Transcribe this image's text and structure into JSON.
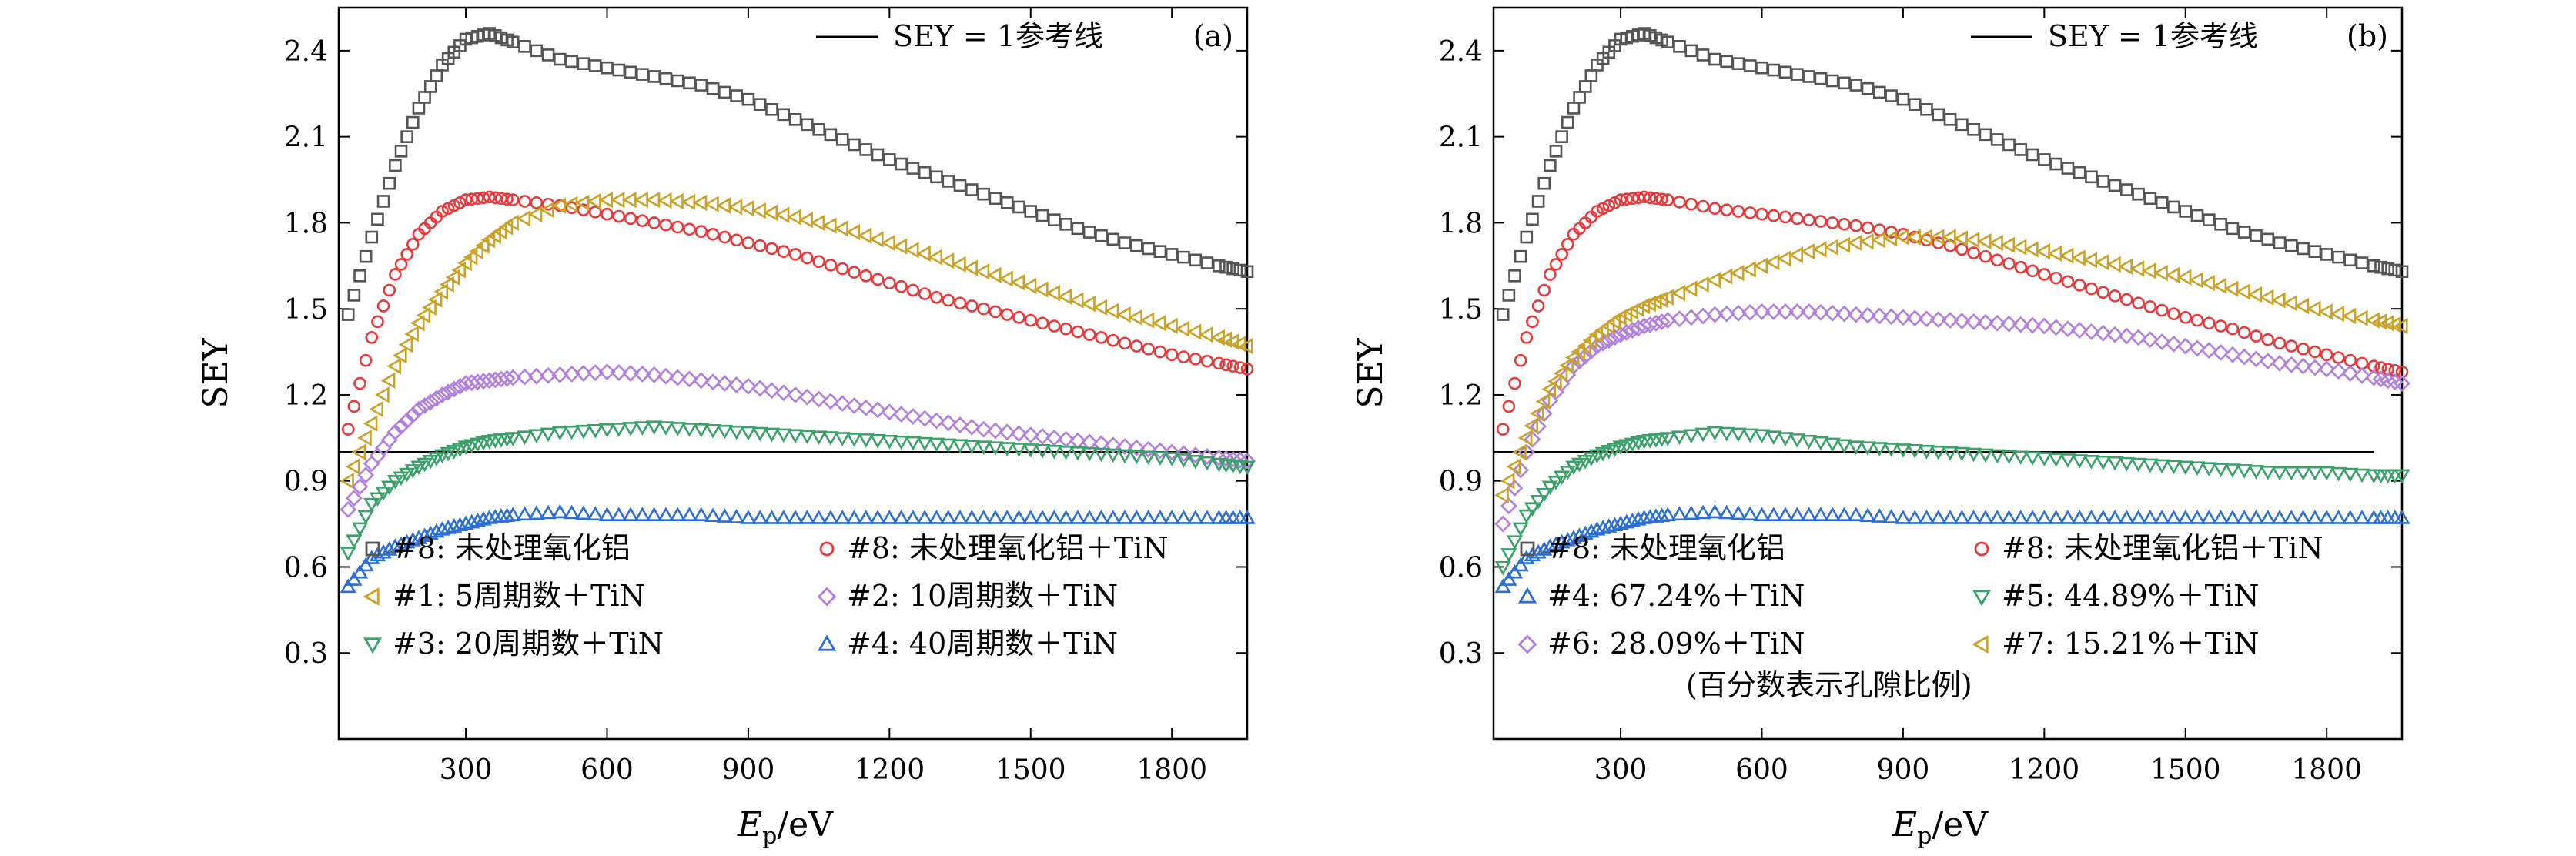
{
  "chart_data": [
    {
      "type": "scatter",
      "panel_label": "(a)",
      "xlabel": "E",
      "xlabel_sub": "p",
      "xlabel_unit": "/eV",
      "ylabel": "SEY",
      "xlim": [
        30,
        1960
      ],
      "ylim": [
        0.0,
        2.55
      ],
      "xticks": [
        300,
        600,
        900,
        1200,
        1500,
        1800
      ],
      "yticks": [
        0.3,
        0.6,
        0.9,
        1.2,
        1.5,
        1.8,
        2.1,
        2.4
      ],
      "reference_line": {
        "y": 1.0,
        "label": "SEY = 1参考线",
        "x_range": [
          30,
          1960
        ]
      },
      "legend_columns": 2,
      "series": [
        {
          "name": "#8: 未处理氧化铝",
          "marker": "square",
          "color": "#555555",
          "x": [
            50,
            100,
            150,
            200,
            250,
            300,
            350,
            400,
            500,
            600,
            700,
            800,
            900,
            1000,
            1100,
            1200,
            1300,
            1400,
            1500,
            1600,
            1700,
            1800,
            1900,
            1960
          ],
          "y": [
            1.48,
            1.75,
            2.0,
            2.2,
            2.35,
            2.44,
            2.46,
            2.43,
            2.37,
            2.34,
            2.31,
            2.28,
            2.23,
            2.16,
            2.09,
            2.02,
            1.96,
            1.9,
            1.84,
            1.78,
            1.73,
            1.69,
            1.65,
            1.63
          ]
        },
        {
          "name": "#8: 未处理氧化铝＋TiN",
          "marker": "circle",
          "color": "#e8393b",
          "x": [
            50,
            100,
            150,
            200,
            250,
            300,
            350,
            400,
            500,
            600,
            700,
            800,
            900,
            1000,
            1100,
            1200,
            1300,
            1400,
            1500,
            1600,
            1700,
            1800,
            1900,
            1960
          ],
          "y": [
            1.08,
            1.4,
            1.62,
            1.76,
            1.84,
            1.88,
            1.89,
            1.88,
            1.86,
            1.83,
            1.8,
            1.77,
            1.73,
            1.69,
            1.64,
            1.59,
            1.54,
            1.5,
            1.46,
            1.42,
            1.38,
            1.34,
            1.31,
            1.29
          ]
        },
        {
          "name": "#1: 5周期数＋TiN",
          "marker": "triangle-left",
          "color": "#c9a227",
          "x": [
            50,
            100,
            150,
            200,
            250,
            300,
            350,
            400,
            500,
            600,
            700,
            800,
            900,
            1000,
            1100,
            1200,
            1300,
            1400,
            1500,
            1600,
            1700,
            1800,
            1900,
            1960
          ],
          "y": [
            0.9,
            1.1,
            1.3,
            1.45,
            1.56,
            1.66,
            1.74,
            1.8,
            1.86,
            1.88,
            1.88,
            1.87,
            1.85,
            1.82,
            1.78,
            1.73,
            1.68,
            1.63,
            1.58,
            1.53,
            1.48,
            1.44,
            1.4,
            1.37
          ]
        },
        {
          "name": "#2: 10周期数＋TiN",
          "marker": "diamond",
          "color": "#b07fe0",
          "x": [
            50,
            100,
            150,
            200,
            250,
            300,
            350,
            400,
            500,
            600,
            700,
            800,
            900,
            1000,
            1100,
            1200,
            1300,
            1400,
            1500,
            1600,
            1700,
            1800,
            1900,
            1960
          ],
          "y": [
            0.8,
            0.96,
            1.07,
            1.15,
            1.2,
            1.24,
            1.25,
            1.26,
            1.27,
            1.28,
            1.27,
            1.25,
            1.23,
            1.2,
            1.17,
            1.14,
            1.11,
            1.08,
            1.06,
            1.04,
            1.02,
            1.0,
            0.98,
            0.97
          ]
        },
        {
          "name": "#3: 20周期数＋TiN",
          "marker": "triangle-down",
          "color": "#3aa168",
          "x": [
            50,
            100,
            150,
            200,
            250,
            300,
            350,
            400,
            500,
            600,
            700,
            800,
            900,
            1000,
            1100,
            1200,
            1300,
            1400,
            1500,
            1600,
            1700,
            1800,
            1900,
            1960
          ],
          "y": [
            0.65,
            0.82,
            0.9,
            0.95,
            0.99,
            1.02,
            1.04,
            1.05,
            1.07,
            1.08,
            1.09,
            1.08,
            1.07,
            1.06,
            1.05,
            1.04,
            1.03,
            1.02,
            1.01,
            1.0,
            0.99,
            0.98,
            0.96,
            0.95
          ]
        },
        {
          "name": "#4: 40周期数＋TiN",
          "marker": "triangle-up",
          "color": "#2b6fd6",
          "x": [
            50,
            100,
            150,
            200,
            250,
            300,
            350,
            400,
            500,
            600,
            700,
            800,
            900,
            1000,
            1100,
            1200,
            1300,
            1400,
            1500,
            1600,
            1700,
            1800,
            1900,
            1960
          ],
          "y": [
            0.53,
            0.63,
            0.67,
            0.7,
            0.73,
            0.75,
            0.77,
            0.78,
            0.79,
            0.78,
            0.78,
            0.78,
            0.77,
            0.77,
            0.77,
            0.77,
            0.77,
            0.77,
            0.77,
            0.77,
            0.77,
            0.77,
            0.77,
            0.77
          ]
        }
      ]
    },
    {
      "type": "scatter",
      "panel_label": "(b)",
      "xlabel": "E",
      "xlabel_sub": "p",
      "xlabel_unit": "/eV",
      "ylabel": "SEY",
      "xlim": [
        30,
        1960
      ],
      "ylim": [
        0.0,
        2.55
      ],
      "xticks": [
        300,
        600,
        900,
        1200,
        1500,
        1800
      ],
      "yticks": [
        0.3,
        0.6,
        0.9,
        1.2,
        1.5,
        1.8,
        2.1,
        2.4
      ],
      "reference_line": {
        "y": 1.0,
        "label": "SEY = 1参考线",
        "x_range": [
          30,
          1900
        ]
      },
      "legend_columns": 2,
      "annotation": "(百分数表示孔隙比例)",
      "series": [
        {
          "name": "#8: 未处理氧化铝",
          "marker": "square",
          "color": "#555555",
          "x": [
            50,
            100,
            150,
            200,
            250,
            300,
            350,
            400,
            500,
            600,
            700,
            800,
            900,
            1000,
            1100,
            1200,
            1300,
            1400,
            1500,
            1600,
            1700,
            1800,
            1900,
            1960
          ],
          "y": [
            1.48,
            1.75,
            2.0,
            2.2,
            2.35,
            2.44,
            2.46,
            2.43,
            2.37,
            2.34,
            2.31,
            2.28,
            2.23,
            2.16,
            2.09,
            2.02,
            1.96,
            1.9,
            1.84,
            1.78,
            1.73,
            1.69,
            1.65,
            1.63
          ]
        },
        {
          "name": "#8: 未处理氧化铝＋TiN",
          "marker": "circle",
          "color": "#e8393b",
          "x": [
            50,
            100,
            150,
            200,
            250,
            300,
            350,
            400,
            500,
            600,
            700,
            800,
            900,
            1000,
            1100,
            1200,
            1300,
            1400,
            1500,
            1600,
            1700,
            1800,
            1900,
            1960
          ],
          "y": [
            1.08,
            1.4,
            1.62,
            1.76,
            1.84,
            1.88,
            1.89,
            1.88,
            1.85,
            1.83,
            1.81,
            1.79,
            1.76,
            1.72,
            1.67,
            1.62,
            1.57,
            1.52,
            1.47,
            1.43,
            1.38,
            1.34,
            1.3,
            1.28
          ]
        },
        {
          "name": "#4: 67.24%＋TiN",
          "marker": "triangle-up",
          "color": "#2b6fd6",
          "x": [
            50,
            100,
            150,
            200,
            250,
            300,
            350,
            400,
            500,
            600,
            700,
            800,
            900,
            1000,
            1100,
            1200,
            1300,
            1400,
            1500,
            1600,
            1700,
            1800,
            1900,
            1960
          ],
          "y": [
            0.53,
            0.63,
            0.67,
            0.7,
            0.73,
            0.75,
            0.77,
            0.78,
            0.79,
            0.78,
            0.78,
            0.78,
            0.77,
            0.77,
            0.77,
            0.77,
            0.77,
            0.77,
            0.77,
            0.77,
            0.77,
            0.77,
            0.77,
            0.77
          ]
        },
        {
          "name": "#5: 44.89%＋TiN",
          "marker": "triangle-down",
          "color": "#3aa168",
          "x": [
            50,
            100,
            150,
            200,
            250,
            300,
            350,
            400,
            500,
            600,
            700,
            800,
            900,
            1000,
            1100,
            1200,
            1300,
            1400,
            1500,
            1600,
            1700,
            1800,
            1900,
            1960
          ],
          "y": [
            0.6,
            0.78,
            0.88,
            0.95,
            0.99,
            1.02,
            1.04,
            1.05,
            1.07,
            1.06,
            1.04,
            1.02,
            1.01,
            1.0,
            0.99,
            0.98,
            0.97,
            0.96,
            0.95,
            0.94,
            0.93,
            0.93,
            0.92,
            0.92
          ]
        },
        {
          "name": "#6: 28.09%＋TiN",
          "marker": "diamond",
          "color": "#b07fe0",
          "x": [
            50,
            100,
            150,
            200,
            250,
            300,
            350,
            400,
            500,
            600,
            700,
            800,
            900,
            1000,
            1100,
            1200,
            1300,
            1400,
            1500,
            1600,
            1700,
            1800,
            1900,
            1960
          ],
          "y": [
            0.75,
            1.0,
            1.18,
            1.3,
            1.37,
            1.41,
            1.44,
            1.46,
            1.48,
            1.49,
            1.49,
            1.48,
            1.47,
            1.46,
            1.45,
            1.44,
            1.42,
            1.4,
            1.37,
            1.34,
            1.31,
            1.29,
            1.26,
            1.24
          ]
        },
        {
          "name": "#7: 15.21%＋TiN",
          "marker": "triangle-left",
          "color": "#c9a227",
          "x": [
            50,
            100,
            150,
            200,
            250,
            300,
            350,
            400,
            500,
            600,
            700,
            800,
            900,
            1000,
            1100,
            1200,
            1300,
            1400,
            1500,
            1600,
            1700,
            1800,
            1900,
            1960
          ],
          "y": [
            0.85,
            1.05,
            1.22,
            1.33,
            1.41,
            1.47,
            1.51,
            1.54,
            1.6,
            1.65,
            1.7,
            1.73,
            1.75,
            1.75,
            1.73,
            1.7,
            1.67,
            1.64,
            1.61,
            1.57,
            1.53,
            1.49,
            1.46,
            1.44
          ]
        }
      ]
    }
  ]
}
